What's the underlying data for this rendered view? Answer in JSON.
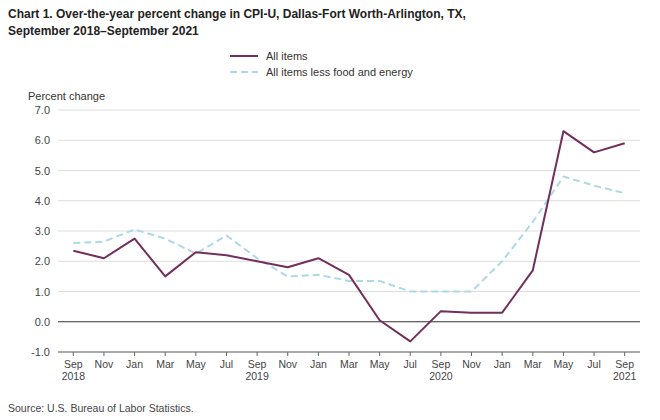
{
  "chart_data": {
    "type": "line",
    "title": "Chart 1. Over-the-year percent change in CPI-U, Dallas-Fort Worth-Arlington, TX,",
    "subtitle": "September 2018–September 2021",
    "ylabel": "Percent change",
    "annotations": [
      "Source: U.S. Bureau of Labor Statistics."
    ],
    "categories": [
      "Sep\n2018",
      "Nov",
      "Jan",
      "Mar",
      "May",
      "Jul",
      "Sep\n2019",
      "Nov",
      "Jan",
      "Mar",
      "May",
      "Jul",
      "Sep\n2020",
      "Nov",
      "Jan",
      "Mar",
      "May",
      "Jul",
      "Sep\n2021"
    ],
    "series": [
      {
        "name": "All items",
        "color": "#722F5B",
        "line_style": "solid",
        "values": [
          2.35,
          2.1,
          2.75,
          1.5,
          2.3,
          2.2,
          2.0,
          1.8,
          2.1,
          1.55,
          0.05,
          -0.65,
          0.35,
          0.3,
          0.3,
          1.7,
          6.3,
          5.6,
          5.9
        ]
      },
      {
        "name": "All items less food and energy",
        "color": "#ADD8E6",
        "line_style": "dashed",
        "values": [
          2.6,
          2.65,
          3.05,
          2.75,
          2.25,
          2.85,
          2.1,
          1.5,
          1.55,
          1.35,
          1.35,
          1.0,
          1.0,
          1.0,
          2.0,
          3.3,
          4.8,
          4.5,
          4.25
        ]
      }
    ],
    "ylim": [
      -1.0,
      7.0
    ],
    "yticks": [
      {
        "value": -1.0,
        "label": "-1.0"
      },
      {
        "value": 0.0,
        "label": "0.0"
      },
      {
        "value": 1.0,
        "label": "1.0"
      },
      {
        "value": 2.0,
        "label": "2.0"
      },
      {
        "value": 3.0,
        "label": "3.0"
      },
      {
        "value": 4.0,
        "label": "4.0"
      },
      {
        "value": 5.0,
        "label": "5.0"
      },
      {
        "value": 6.0,
        "label": "6.0"
      },
      {
        "value": 7.0,
        "label": "7.0"
      }
    ],
    "grid": true,
    "legend": "top"
  }
}
